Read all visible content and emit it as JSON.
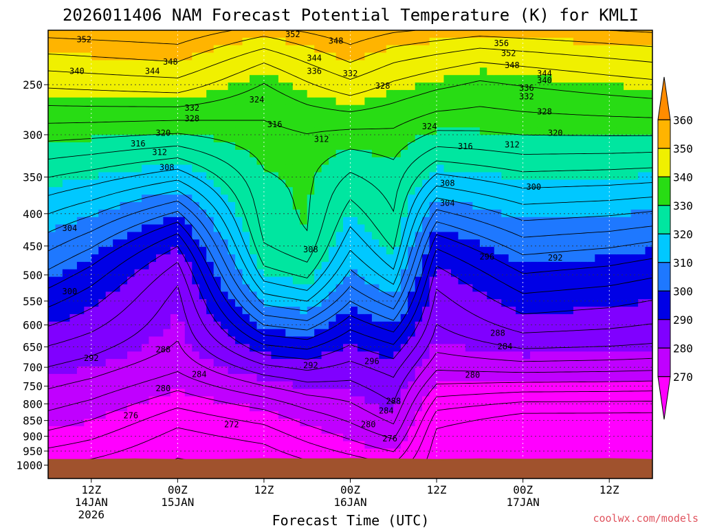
{
  "chart_data": {
    "type": "heatmap",
    "title": "2026011406 NAM Forecast Potential Temperature (K) for KMLI",
    "xlabel": "Forecast Time (UTC)",
    "ylabel": "",
    "credit": "coolwx.com/models",
    "y_ticks": [
      250,
      300,
      350,
      400,
      450,
      500,
      550,
      600,
      650,
      700,
      750,
      800,
      850,
      900,
      950,
      1000
    ],
    "y_range": [
      205,
      1050
    ],
    "x_range": [
      0,
      84
    ],
    "x_ticks": [
      {
        "hour": 6,
        "lines": [
          "12Z",
          "14JAN",
          "2026"
        ]
      },
      {
        "hour": 18,
        "lines": [
          "00Z",
          "15JAN"
        ]
      },
      {
        "hour": 30,
        "lines": [
          "12Z"
        ]
      },
      {
        "hour": 42,
        "lines": [
          "00Z",
          "16JAN"
        ]
      },
      {
        "hour": 54,
        "lines": [
          "12Z"
        ]
      },
      {
        "hour": 66,
        "lines": [
          "00Z",
          "17JAN"
        ]
      },
      {
        "hour": 78,
        "lines": [
          "12Z"
        ]
      }
    ],
    "colorbar": {
      "levels": [
        270,
        280,
        290,
        300,
        310,
        320,
        330,
        340,
        350,
        360
      ],
      "colors": [
        "#ff00ff",
        "#c000ff",
        "#8000ff",
        "#0000e6",
        "#1e78ff",
        "#00c8ff",
        "#00e6a0",
        "#28dc14",
        "#f0f000",
        "#ffb400",
        "#ff8c00"
      ]
    },
    "grid": true,
    "terrain_color": "#a0522d",
    "contour_interval": 4,
    "contour_labels": [
      {
        "v": "352",
        "h": 5.0,
        "p": 212
      },
      {
        "v": "352",
        "h": 34.0,
        "p": 208
      },
      {
        "v": "348",
        "h": 40.0,
        "p": 213
      },
      {
        "v": "356",
        "h": 63.0,
        "p": 215
      },
      {
        "v": "352",
        "h": 64.0,
        "p": 223
      },
      {
        "v": "348",
        "h": 17.0,
        "p": 230
      },
      {
        "v": "344",
        "h": 37.0,
        "p": 227
      },
      {
        "v": "348",
        "h": 64.5,
        "p": 233
      },
      {
        "v": "340",
        "h": 4.0,
        "p": 238
      },
      {
        "v": "344",
        "h": 14.5,
        "p": 238
      },
      {
        "v": "336",
        "h": 37.0,
        "p": 238
      },
      {
        "v": "332",
        "h": 42.0,
        "p": 240
      },
      {
        "v": "344",
        "h": 69.0,
        "p": 240
      },
      {
        "v": "340",
        "h": 69.0,
        "p": 246
      },
      {
        "v": "328",
        "h": 46.5,
        "p": 251
      },
      {
        "v": "336",
        "h": 66.5,
        "p": 253
      },
      {
        "v": "332",
        "h": 66.5,
        "p": 261
      },
      {
        "v": "324",
        "h": 29.0,
        "p": 264
      },
      {
        "v": "332",
        "h": 20.0,
        "p": 272
      },
      {
        "v": "328",
        "h": 69.0,
        "p": 276
      },
      {
        "v": "328",
        "h": 20.0,
        "p": 283
      },
      {
        "v": "316",
        "h": 31.5,
        "p": 289
      },
      {
        "v": "324",
        "h": 53.0,
        "p": 291
      },
      {
        "v": "320",
        "h": 16.0,
        "p": 298
      },
      {
        "v": "320",
        "h": 70.5,
        "p": 298
      },
      {
        "v": "312",
        "h": 38.0,
        "p": 305
      },
      {
        "v": "316",
        "h": 12.5,
        "p": 310
      },
      {
        "v": "316",
        "h": 58.0,
        "p": 313
      },
      {
        "v": "312",
        "h": 64.5,
        "p": 311
      },
      {
        "v": "312",
        "h": 15.5,
        "p": 320
      },
      {
        "v": "308",
        "h": 16.5,
        "p": 338
      },
      {
        "v": "308",
        "h": 55.5,
        "p": 358
      },
      {
        "v": "300",
        "h": 67.5,
        "p": 363
      },
      {
        "v": "304",
        "h": 55.5,
        "p": 385
      },
      {
        "v": "304",
        "h": 3.0,
        "p": 422
      },
      {
        "v": "308",
        "h": 36.5,
        "p": 456
      },
      {
        "v": "296",
        "h": 61.0,
        "p": 468
      },
      {
        "v": "292",
        "h": 70.5,
        "p": 470
      },
      {
        "v": "300",
        "h": 3.0,
        "p": 531
      },
      {
        "v": "288",
        "h": 62.5,
        "p": 618
      },
      {
        "v": "284",
        "h": 63.5,
        "p": 649
      },
      {
        "v": "288",
        "h": 16.0,
        "p": 656
      },
      {
        "v": "292",
        "h": 6.0,
        "p": 677
      },
      {
        "v": "292",
        "h": 36.5,
        "p": 695
      },
      {
        "v": "296",
        "h": 45.0,
        "p": 685
      },
      {
        "v": "284",
        "h": 21.0,
        "p": 718
      },
      {
        "v": "280",
        "h": 59.0,
        "p": 720
      },
      {
        "v": "280",
        "h": 16.0,
        "p": 756
      },
      {
        "v": "288",
        "h": 48.0,
        "p": 792
      },
      {
        "v": "284",
        "h": 47.0,
        "p": 820
      },
      {
        "v": "276",
        "h": 11.5,
        "p": 835
      },
      {
        "v": "272",
        "h": 25.5,
        "p": 862
      },
      {
        "v": "280",
        "h": 44.5,
        "p": 862
      },
      {
        "v": "276",
        "h": 47.5,
        "p": 908
      }
    ]
  }
}
